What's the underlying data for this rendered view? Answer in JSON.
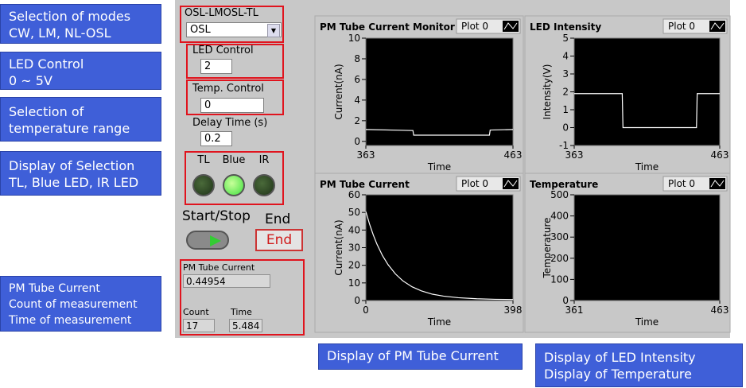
{
  "annotations": {
    "left": [
      {
        "lines": [
          "Selection of modes",
          "CW, LM, NL-OSL"
        ]
      },
      {
        "lines": [
          "LED Control",
          "0 ~ 5V"
        ]
      },
      {
        "lines": [
          "Selection of",
          "temperature range"
        ]
      },
      {
        "lines": [
          "Display of Selection",
          "TL, Blue LED, IR LED"
        ]
      },
      {
        "lines": [
          "PM Tube Current",
          "Count of measurement",
          "Time of measurement"
        ]
      }
    ],
    "bottom": [
      {
        "lines": [
          "Display of PM Tube Current"
        ]
      },
      {
        "lines": [
          "Display of LED Intensity",
          "Display of Temperature"
        ]
      }
    ]
  },
  "controls": {
    "mode": {
      "label": "OSL-LMOSL-TL",
      "value": "OSL"
    },
    "led_control": {
      "label": "LED Control",
      "value": "2"
    },
    "temp_control": {
      "label": "Temp. Control",
      "value": "0"
    },
    "delay_time": {
      "label": "Delay Time (s)",
      "value": "0.2"
    },
    "leds": {
      "labels": [
        "TL",
        "Blue",
        "IR"
      ],
      "states": [
        false,
        true,
        false
      ]
    },
    "start_stop": {
      "label": "Start/Stop"
    },
    "end": {
      "label": "End",
      "button": "End"
    },
    "pm_tube_current": {
      "label": "PM Tube Current",
      "value": "0.44954"
    },
    "count": {
      "label": "Count",
      "value": "17"
    },
    "time": {
      "label": "Time",
      "value": "5.484"
    }
  },
  "charts": [
    {
      "type": "line",
      "title": "PM Tube Current Monitor",
      "legend": "Plot 0",
      "x_label": "Time",
      "y_label": "Current(nA)",
      "xlim": [
        363,
        463
      ],
      "xticks": [
        363,
        463
      ],
      "ylim": [
        -0.4,
        10
      ],
      "yticks": [
        0,
        2,
        4,
        6,
        8,
        10
      ],
      "color": "#ffffff",
      "x": [
        363,
        395,
        395.5,
        447,
        447.5,
        463
      ],
      "values": [
        1.15,
        1.05,
        0.6,
        0.6,
        1.1,
        1.15
      ]
    },
    {
      "type": "line",
      "title": "LED Intensity",
      "legend": "Plot 0",
      "x_label": "Time",
      "y_label": "Intensity(V)",
      "xlim": [
        363,
        463
      ],
      "xticks": [
        363,
        463
      ],
      "ylim": [
        -1,
        5
      ],
      "yticks": [
        -1,
        0,
        1,
        2,
        3,
        4,
        5
      ],
      "color": "#ffffff",
      "x": [
        363,
        396,
        396.5,
        447,
        447.5,
        463
      ],
      "values": [
        1.9,
        1.9,
        0,
        0,
        1.9,
        1.9
      ]
    },
    {
      "type": "line",
      "title": "PM Tube Current",
      "legend": "Plot 0",
      "x_label": "Time",
      "y_label": "Current(nA)",
      "xlim": [
        0,
        398
      ],
      "xticks": [
        0,
        398
      ],
      "ylim": [
        0,
        60
      ],
      "yticks": [
        0,
        10,
        20,
        30,
        40,
        50,
        60
      ],
      "color": "#ffffff",
      "x": [
        0,
        10,
        20,
        30,
        45,
        60,
        80,
        100,
        125,
        150,
        180,
        210,
        250,
        300,
        350,
        398
      ],
      "values": [
        50.5,
        43.4,
        37.3,
        32.0,
        25.5,
        20.4,
        15.1,
        11.2,
        7.8,
        5.5,
        3.6,
        2.5,
        1.6,
        1.0,
        0.7,
        0.6
      ]
    },
    {
      "type": "line",
      "title": "Temperature",
      "legend": "Plot 0",
      "x_label": "Time",
      "y_label": "Temperature",
      "xlim": [
        361,
        463
      ],
      "xticks": [
        361,
        463
      ],
      "ylim": [
        0,
        500
      ],
      "yticks": [
        0,
        100,
        200,
        300,
        400,
        500
      ]
    }
  ]
}
